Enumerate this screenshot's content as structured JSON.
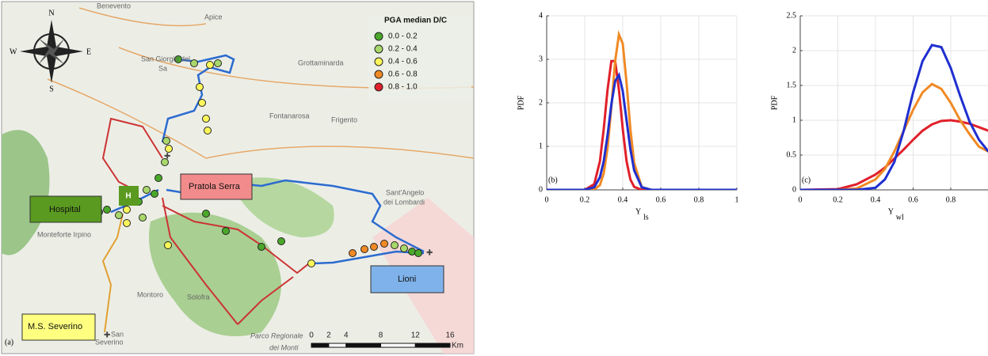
{
  "map": {
    "panel_label": "(a)",
    "legend": {
      "title": "PGA median D/C",
      "items": [
        {
          "label": "0.0 - 0.2",
          "color": "#4aa82a"
        },
        {
          "label": "0.2 - 0.4",
          "color": "#a8d86a"
        },
        {
          "label": "0.4 - 0.6",
          "color": "#fbf75a"
        },
        {
          "label": "0.6 - 0.8",
          "color": "#f08a24"
        },
        {
          "label": "0.8 - 1.0",
          "color": "#e0202a"
        }
      ]
    },
    "compass": {
      "n": "N",
      "e": "E",
      "s": "S",
      "w": "W"
    },
    "places": [
      "Benevento",
      "Apice",
      "San Giorgio del",
      "Sa",
      "Grottaminarda",
      "Fontanarosa",
      "Frigento",
      "Sant'Angelo",
      "dei Lombardi",
      "Monteforte Irpino",
      "Montoro",
      "Solofra",
      "Parco Regionale",
      "dei Monti",
      "San",
      "Severino"
    ],
    "boxes": {
      "hospital": "Hospital",
      "pratola": "Pratola Serra",
      "lioni": "Lioni",
      "severino": "M.S. Severino"
    },
    "scale": {
      "ticks": [
        0,
        2,
        4,
        8,
        12,
        16
      ],
      "unit": "Km"
    }
  },
  "chart_data": [
    {
      "type": "line",
      "panel_label": "(b)",
      "xlabel": "Y",
      "xlabel_sub": "ls",
      "ylabel": "PDF",
      "xlim": [
        0,
        1
      ],
      "xticks": [
        0,
        0.2,
        0.4,
        0.6,
        0.8,
        1
      ],
      "ylim": [
        0,
        4
      ],
      "yticks": [
        0,
        1,
        2,
        3,
        4
      ],
      "grid": true,
      "x": [
        0,
        0.2,
        0.25,
        0.28,
        0.3,
        0.32,
        0.34,
        0.36,
        0.38,
        0.4,
        0.42,
        0.44,
        0.46,
        0.5,
        0.55,
        0.6,
        1
      ],
      "series": [
        {
          "color": "#e0202a",
          "values": [
            0,
            0,
            0.13,
            0.66,
            1.4,
            2.3,
            2.96,
            2.96,
            2.3,
            1.4,
            0.66,
            0.24,
            0.07,
            0,
            0,
            0,
            0
          ]
        },
        {
          "color": "#f08a24",
          "values": [
            0,
            0,
            0.01,
            0.11,
            0.38,
            0.96,
            1.9,
            2.96,
            3.57,
            3.36,
            2.46,
            1.4,
            0.62,
            0.06,
            0,
            0,
            0
          ]
        },
        {
          "color": "#1f2fd0",
          "values": [
            0,
            0,
            0.06,
            0.29,
            0.66,
            1.25,
            1.96,
            2.5,
            2.64,
            2.27,
            1.6,
            0.94,
            0.45,
            0.06,
            0,
            0,
            0
          ]
        }
      ]
    },
    {
      "type": "line",
      "panel_label": "(c)",
      "xlabel": "Y",
      "xlabel_sub": "wl",
      "ylabel": "PDF",
      "xlim": [
        0,
        1
      ],
      "xticks": [
        0,
        0.2,
        0.4,
        0.6,
        0.8
      ],
      "ylim": [
        0,
        2.5
      ],
      "yticks": [
        0,
        0.5,
        1,
        1.5,
        2,
        2.5
      ],
      "grid": true,
      "x": [
        0,
        0.2,
        0.3,
        0.4,
        0.45,
        0.5,
        0.55,
        0.6,
        0.65,
        0.7,
        0.75,
        0.8,
        0.85,
        0.9,
        0.95,
        1
      ],
      "series": [
        {
          "color": "#e0202a",
          "values": [
            0,
            0.01,
            0.08,
            0.22,
            0.32,
            0.45,
            0.58,
            0.72,
            0.85,
            0.94,
            0.99,
            1,
            0.98,
            0.95,
            0.9,
            0.85
          ]
        },
        {
          "color": "#f08a24",
          "values": [
            0,
            0,
            0.02,
            0.15,
            0.3,
            0.55,
            0.85,
            1.15,
            1.4,
            1.52,
            1.45,
            1.25,
            1,
            0.8,
            0.62,
            0.55
          ]
        },
        {
          "color": "#1f2fd0",
          "values": [
            0,
            0,
            0,
            0.03,
            0.15,
            0.4,
            0.85,
            1.4,
            1.85,
            2.08,
            2.05,
            1.75,
            1.35,
            0.98,
            0.72,
            0.55
          ]
        }
      ]
    }
  ]
}
